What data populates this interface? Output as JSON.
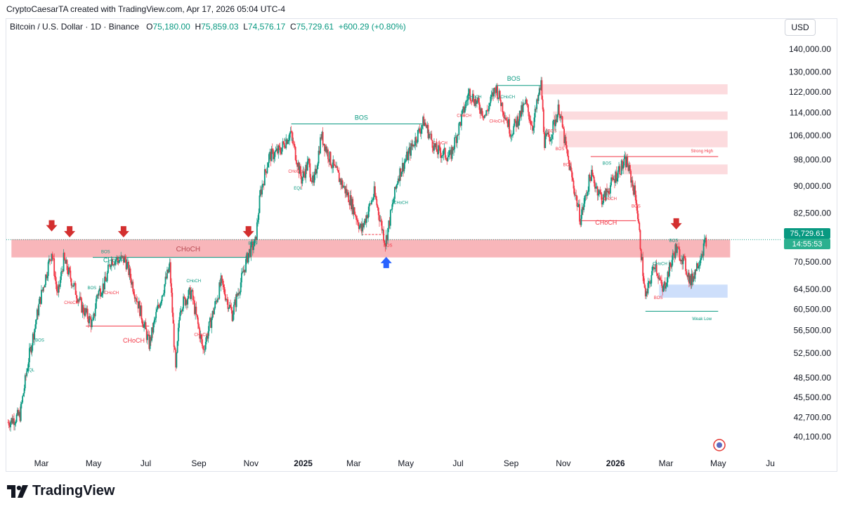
{
  "header": {
    "caption": "CryptoCaesarTA created with TradingView.com, Apr 17, 2026 05:04 UTC-4",
    "symbol": "Bitcoin / U.S. Dollar · 1D · Binance",
    "open_label": "O",
    "open": "75,180.00",
    "high_label": "H",
    "high": "75,859.03",
    "low_label": "L",
    "low": "74,576.17",
    "close_label": "C",
    "close": "75,729.61",
    "change": "+600.29 (+0.80%)",
    "currency": "USD"
  },
  "price_badge": {
    "price": "75,729.61",
    "countdown": "14:55:53"
  },
  "brand": {
    "name": "TradingView"
  },
  "colors": {
    "up": "#089981",
    "down": "#f23645",
    "zone_red": "#f7a9ae",
    "zone_blue": "#c9dbfb",
    "arrow_red": "#d32f2f",
    "arrow_blue": "#2962ff"
  },
  "chart_data": {
    "type": "candlestick",
    "title": "Bitcoin / U.S. Dollar · 1D · Binance",
    "y_scale": "log",
    "ylim": [
      38000,
      150000
    ],
    "y_ticks": [
      {
        "v": 140000,
        "t": "140,000.00"
      },
      {
        "v": 130000,
        "t": "130,000.00"
      },
      {
        "v": 122000,
        "t": "122,000.00"
      },
      {
        "v": 114000,
        "t": "114,000.00"
      },
      {
        "v": 106000,
        "t": "106,000.00"
      },
      {
        "v": 98000,
        "t": "98,000.00"
      },
      {
        "v": 90000,
        "t": "90,000.00"
      },
      {
        "v": 82500,
        "t": "82,500.00"
      },
      {
        "v": 70500,
        "t": "70,500.00"
      },
      {
        "v": 64500,
        "t": "64,500.00"
      },
      {
        "v": 60500,
        "t": "60,500.00"
      },
      {
        "v": 56500,
        "t": "56,500.00"
      },
      {
        "v": 52500,
        "t": "52,500.00"
      },
      {
        "v": 48500,
        "t": "48,500.00"
      },
      {
        "v": 45500,
        "t": "45,500.00"
      },
      {
        "v": 42700,
        "t": "42,700.00"
      },
      {
        "v": 40100,
        "t": "40,100.00"
      }
    ],
    "x_ticks": [
      {
        "d": "2024-03-01",
        "t": "Mar",
        "bold": false
      },
      {
        "d": "2024-05-01",
        "t": "May",
        "bold": false
      },
      {
        "d": "2024-07-01",
        "t": "Jul",
        "bold": false
      },
      {
        "d": "2024-09-01",
        "t": "Sep",
        "bold": false
      },
      {
        "d": "2024-11-01",
        "t": "Nov",
        "bold": false
      },
      {
        "d": "2025-01-01",
        "t": "2025",
        "bold": true
      },
      {
        "d": "2025-03-01",
        "t": "Mar",
        "bold": false
      },
      {
        "d": "2025-05-01",
        "t": "May",
        "bold": false
      },
      {
        "d": "2025-07-01",
        "t": "Jul",
        "bold": false
      },
      {
        "d": "2025-09-01",
        "t": "Sep",
        "bold": false
      },
      {
        "d": "2025-11-01",
        "t": "Nov",
        "bold": false
      },
      {
        "d": "2026-01-01",
        "t": "2026",
        "bold": true
      },
      {
        "d": "2026-03-01",
        "t": "Mar",
        "bold": false
      },
      {
        "d": "2026-05-01",
        "t": "May",
        "bold": false
      },
      {
        "d": "2026-07-01",
        "t": "Ju",
        "bold": false
      }
    ],
    "price_path": [
      [
        "2024-01-22",
        42000
      ],
      [
        "2024-02-05",
        43000
      ],
      [
        "2024-02-15",
        51500
      ],
      [
        "2024-02-28",
        62000
      ],
      [
        "2024-03-13",
        73000
      ],
      [
        "2024-03-20",
        63000
      ],
      [
        "2024-03-27",
        71000
      ],
      [
        "2024-04-17",
        61000
      ],
      [
        "2024-04-30",
        57500
      ],
      [
        "2024-05-05",
        63500
      ],
      [
        "2024-05-15",
        66000
      ],
      [
        "2024-05-21",
        71000
      ],
      [
        "2024-06-07",
        71000
      ],
      [
        "2024-06-24",
        60500
      ],
      [
        "2024-07-05",
        54000
      ],
      [
        "2024-07-14",
        60000
      ],
      [
        "2024-07-29",
        69500
      ],
      [
        "2024-08-05",
        49500
      ],
      [
        "2024-08-10",
        61000
      ],
      [
        "2024-08-23",
        64000
      ],
      [
        "2024-09-06",
        53000
      ],
      [
        "2024-09-27",
        66000
      ],
      [
        "2024-10-10",
        59500
      ],
      [
        "2024-10-29",
        72500
      ],
      [
        "2024-11-06",
        75000
      ],
      [
        "2024-11-12",
        88000
      ],
      [
        "2024-11-22",
        99000
      ],
      [
        "2024-12-05",
        101000
      ],
      [
        "2024-12-17",
        107000
      ],
      [
        "2024-12-30",
        92000
      ],
      [
        "2025-01-07",
        97000
      ],
      [
        "2025-01-13",
        90000
      ],
      [
        "2025-01-22",
        106000
      ],
      [
        "2025-02-03",
        97000
      ],
      [
        "2025-02-25",
        86000
      ],
      [
        "2025-03-10",
        78000
      ],
      [
        "2025-03-25",
        88000
      ],
      [
        "2025-04-07",
        75000
      ],
      [
        "2025-04-22",
        93000
      ],
      [
        "2025-05-22",
        111000
      ],
      [
        "2025-06-05",
        101000
      ],
      [
        "2025-06-22",
        99000
      ],
      [
        "2025-07-14",
        122000
      ],
      [
        "2025-08-02",
        113000
      ],
      [
        "2025-08-14",
        124000
      ],
      [
        "2025-09-01",
        107000
      ],
      [
        "2025-09-18",
        117500
      ],
      [
        "2025-09-26",
        109000
      ],
      [
        "2025-10-06",
        125000
      ],
      [
        "2025-10-10",
        104000
      ],
      [
        "2025-10-17",
        106000
      ],
      [
        "2025-10-27",
        116000
      ],
      [
        "2025-11-05",
        100000
      ],
      [
        "2025-11-21",
        81000
      ],
      [
        "2025-12-03",
        93500
      ],
      [
        "2025-12-17",
        86000
      ],
      [
        "2026-01-05",
        95000
      ],
      [
        "2026-01-14",
        97500
      ],
      [
        "2026-01-25",
        86500
      ],
      [
        "2026-02-05",
        62500
      ],
      [
        "2026-02-16",
        70500
      ],
      [
        "2026-02-25",
        64000
      ],
      [
        "2026-03-12",
        73500
      ],
      [
        "2026-03-20",
        71500
      ],
      [
        "2026-03-30",
        66000
      ],
      [
        "2026-04-17",
        75729
      ]
    ],
    "zones": [
      {
        "name": "choch-supply-zone",
        "from": "2024-01-26",
        "to": "2026-05-15",
        "low": 71500,
        "high": 75800,
        "color": "red",
        "label": "CHoCH"
      },
      {
        "name": "supply-zone-1",
        "from": "2025-10-07",
        "to": "2026-05-12",
        "low": 121000,
        "high": 125000,
        "color": "lightred"
      },
      {
        "name": "supply-zone-2",
        "from": "2025-10-20",
        "to": "2026-05-12",
        "low": 111500,
        "high": 114500,
        "color": "lightred"
      },
      {
        "name": "supply-zone-3",
        "from": "2025-10-27",
        "to": "2026-05-12",
        "low": 102000,
        "high": 107500,
        "color": "lightred"
      },
      {
        "name": "supply-zone-4",
        "from": "2026-01-10",
        "to": "2026-05-12",
        "low": 93500,
        "high": 96500,
        "color": "lightred"
      },
      {
        "name": "demand-zone",
        "from": "2026-02-21",
        "to": "2026-05-12",
        "low": 62800,
        "high": 65500,
        "color": "blue"
      }
    ],
    "annotations": [
      {
        "t": "BOS",
        "d": "2025-03-10",
        "v": 111500,
        "c": "up",
        "size": 9
      },
      {
        "t": "BOS",
        "d": "2025-09-04",
        "v": 126500,
        "c": "up",
        "size": 9
      },
      {
        "t": "CHoCH",
        "d": "2025-12-21",
        "v": 79500,
        "c": "down",
        "size": 9
      },
      {
        "t": "CHoCH",
        "d": "2024-05-25",
        "v": 70400,
        "c": "up",
        "size": 9
      },
      {
        "t": "CHoCH",
        "d": "2024-06-17",
        "v": 54300,
        "c": "down",
        "size": 9
      },
      {
        "t": "Strong High",
        "d": "2026-04-12",
        "v": 100300,
        "c": "down",
        "size": 6
      },
      {
        "t": "Weak Low",
        "d": "2026-04-12",
        "v": 58400,
        "c": "up",
        "size": 6
      },
      {
        "t": "CHoCH",
        "d": "2024-08-26",
        "v": 66000,
        "c": "up",
        "size": 6
      },
      {
        "t": "CHoCH",
        "d": "2024-09-04",
        "v": 55500,
        "c": "down",
        "size": 6
      },
      {
        "t": "CHoCH",
        "d": "2025-07-20",
        "v": 119500,
        "c": "up",
        "size": 6
      },
      {
        "t": "CHoCH",
        "d": "2025-08-15",
        "v": 110500,
        "c": "down",
        "size": 6
      },
      {
        "t": "CHoCH",
        "d": "2025-08-28",
        "v": 119500,
        "c": "up",
        "size": 6
      },
      {
        "t": "CHoCH",
        "d": "2024-12-23",
        "v": 94000,
        "c": "down",
        "size": 6
      },
      {
        "t": "CHoCH",
        "d": "2025-07-08",
        "v": 112500,
        "c": "down",
        "size": 6
      },
      {
        "t": "CHoCH",
        "d": "2025-06-10",
        "v": 103000,
        "c": "down",
        "size": 6
      },
      {
        "t": "CHoCH",
        "d": "2025-04-25",
        "v": 85000,
        "c": "up",
        "size": 6
      },
      {
        "t": "CHoCH",
        "d": "2024-04-05",
        "v": 61500,
        "c": "down",
        "size": 6
      },
      {
        "t": "CHoCH",
        "d": "2024-05-22",
        "v": 63500,
        "c": "down",
        "size": 6
      },
      {
        "t": "CHoCH",
        "d": "2026-02-22",
        "v": 69800,
        "c": "up",
        "size": 6
      },
      {
        "t": "CHoCH",
        "d": "2025-12-25",
        "v": 86000,
        "c": "down",
        "size": 6
      },
      {
        "t": "BOS",
        "d": "2024-04-29",
        "v": 64500,
        "c": "up",
        "size": 6
      },
      {
        "t": "BOS",
        "d": "2024-05-15",
        "v": 72500,
        "c": "up",
        "size": 6
      },
      {
        "t": "BOS",
        "d": "2024-12-15",
        "v": 104000,
        "c": "up",
        "size": 6
      },
      {
        "t": "BOS",
        "d": "2025-04-10",
        "v": 74000,
        "c": "down",
        "size": 6
      },
      {
        "t": "BOS",
        "d": "2025-10-19",
        "v": 107000,
        "c": "down",
        "size": 6
      },
      {
        "t": "BOS",
        "d": "2025-10-28",
        "v": 101000,
        "c": "down",
        "size": 6
      },
      {
        "t": "BOS",
        "d": "2025-11-06",
        "v": 96000,
        "c": "down",
        "size": 6
      },
      {
        "t": "BOS",
        "d": "2025-12-22",
        "v": 96500,
        "c": "up",
        "size": 6
      },
      {
        "t": "BOS",
        "d": "2026-01-25",
        "v": 84000,
        "c": "down",
        "size": 6
      },
      {
        "t": "BOS",
        "d": "2026-02-20",
        "v": 62500,
        "c": "down",
        "size": 6
      },
      {
        "t": "BOS",
        "d": "2026-03-10",
        "v": 75200,
        "c": "up",
        "size": 6
      },
      {
        "t": "BOS",
        "d": "2024-11-03",
        "v": 74500,
        "c": "up",
        "size": 6
      },
      {
        "t": "BOS",
        "d": "2024-02-28",
        "v": 54500,
        "c": "up",
        "size": 6
      },
      {
        "t": "EQL",
        "d": "2024-02-17",
        "v": 49500,
        "c": "up",
        "size": 6
      },
      {
        "t": "EQL",
        "d": "2024-12-26",
        "v": 89000,
        "c": "up",
        "size": 6
      }
    ],
    "structure_lines": [
      {
        "name": "bos-line-2025",
        "from": "2024-12-18",
        "to": "2025-05-20",
        "v": 110000,
        "c": "up",
        "style": "solid"
      },
      {
        "name": "bos-line-ath",
        "from": "2025-08-14",
        "to": "2025-10-06",
        "v": 124500,
        "c": "up",
        "style": "solid"
      },
      {
        "name": "choch-line-2024",
        "from": "2024-04-22",
        "to": "2024-07-05",
        "v": 57300,
        "c": "down",
        "style": "solid"
      },
      {
        "name": "choch-line-2026",
        "from": "2025-11-21",
        "to": "2026-01-25",
        "v": 80500,
        "c": "down",
        "style": "solid"
      },
      {
        "name": "strong-high-line",
        "from": "2025-12-03",
        "to": "2026-05-01",
        "v": 99000,
        "c": "down",
        "style": "solid"
      },
      {
        "name": "weak-low-line",
        "from": "2026-02-05",
        "to": "2026-05-01",
        "v": 60100,
        "c": "up",
        "style": "solid"
      },
      {
        "name": "choch-top-line",
        "from": "2024-04-30",
        "to": "2024-10-29",
        "v": 71500,
        "c": "up",
        "style": "solid"
      },
      {
        "name": "bos-low-dash",
        "from": "2025-03-10",
        "to": "2025-04-07",
        "v": 77000,
        "c": "down",
        "style": "dashed"
      }
    ],
    "arrows": [
      {
        "d": "2024-03-13",
        "v": 79000,
        "dir": "down"
      },
      {
        "d": "2024-04-03",
        "v": 77500,
        "dir": "down"
      },
      {
        "d": "2024-06-05",
        "v": 77500,
        "dir": "down"
      },
      {
        "d": "2024-10-29",
        "v": 77500,
        "dir": "down"
      },
      {
        "d": "2026-03-13",
        "v": 79500,
        "dir": "down"
      },
      {
        "d": "2025-04-08",
        "v": 70500,
        "dir": "up"
      }
    ],
    "current_price": 75729.61
  }
}
